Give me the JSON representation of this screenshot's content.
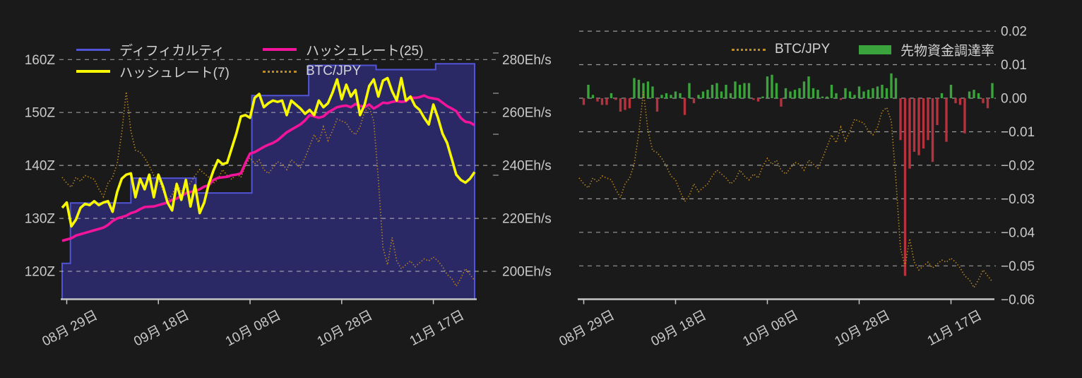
{
  "colors": {
    "background": "#1a1a1a",
    "text": "#c9c9c9",
    "gridline": "#b9b9b9",
    "baseline": "#c6c6c6",
    "difficulty_line": "#5254d6",
    "difficulty_fill": "#2b2866",
    "hashrate7": "#f8f800",
    "hashrate25": "#f2149a",
    "btc_jpy": "#c08a1e",
    "funding_positive": "#3ba33b",
    "funding_negative": "#b5323e"
  },
  "x_axis": {
    "tick_labels": [
      "08月 29日",
      "09月 18日",
      "10月 08日",
      "10月 28日",
      "11月 17日"
    ],
    "tick_day_indices": [
      1,
      21,
      41,
      61,
      81
    ],
    "day_range": [
      0,
      90
    ]
  },
  "chart_data": [
    {
      "type": "line",
      "title": "",
      "xlabel": "",
      "x_tick_labels": [
        "08月 29日",
        "09月 18日",
        "10月 08日",
        "10月 28日",
        "11月 17日"
      ],
      "x_tick_day_indices": [
        1,
        21,
        41,
        61,
        81
      ],
      "x_range_days": [
        0,
        90
      ],
      "grid": "dashed-horizontal",
      "legend_position": "upper-left-inside",
      "y_left": {
        "unit": "Z (difficulty)",
        "ticks": [
          "160Z",
          "150Z",
          "140Z",
          "130Z",
          "120Z"
        ],
        "values": [
          160,
          150,
          140,
          130,
          120
        ],
        "range": [
          118.9,
          165.3
        ]
      },
      "y_right": {
        "unit": "Eh/s (hashrate)",
        "ticks": [
          "280Eh/s",
          "260Eh/s",
          "240Eh/s",
          "220Eh/s",
          "200Eh/s"
        ],
        "values": [
          280,
          260,
          240,
          220,
          200
        ],
        "range": [
          197.8,
          290.6
        ]
      },
      "series": [
        {
          "name": "ディフィカルティ",
          "type": "step-area",
          "axis": "left",
          "unit": "Z",
          "color": "#5254d6",
          "fill": "#2b2866",
          "steps_day_value": [
            [
              0,
              121.5
            ],
            [
              1.8,
              132.9
            ],
            [
              15,
              137.6
            ],
            [
              29.2,
              134.8
            ],
            [
              41.4,
              153.2
            ],
            [
              53.8,
              158.9
            ],
            [
              68.5,
              158.1
            ],
            [
              81.5,
              159.2
            ]
          ]
        },
        {
          "name": "ハッシュレート(7)",
          "type": "line",
          "axis": "right",
          "unit": "Eh/s",
          "color": "#f8f800",
          "x_day_step": 1,
          "values": [
            224,
            226,
            217,
            219.5,
            224,
            225.5,
            225,
            226.5,
            225,
            226,
            226.5,
            222.5,
            230,
            235,
            236.5,
            237,
            228,
            235,
            231,
            236.5,
            228,
            236.5,
            232,
            226,
            223,
            233,
            227,
            234.5,
            224.5,
            232.5,
            222,
            226,
            233,
            238,
            242,
            240.5,
            241,
            246.5,
            252,
            258.5,
            259,
            258,
            265.5,
            267,
            262,
            263.5,
            264.5,
            264,
            264.5,
            259,
            264.5,
            263,
            261.5,
            259.5,
            261,
            259,
            264.5,
            262,
            263.5,
            267.5,
            272.5,
            265,
            270.5,
            266,
            268.5,
            259,
            263,
            270,
            272.5,
            266,
            272,
            273,
            268,
            264.5,
            273,
            264.5,
            266,
            262.5,
            261,
            258,
            255.5,
            263,
            258,
            252,
            248.5,
            242.5,
            236.5,
            234.5,
            233.5,
            235,
            237.5
          ]
        },
        {
          "name": "ハッシュレート(25)",
          "type": "line",
          "axis": "right",
          "unit": "Eh/s",
          "color": "#f2149a",
          "x_day_step": 1,
          "values": [
            211.5,
            212,
            212.5,
            213.5,
            214,
            214.5,
            215,
            215.5,
            216,
            216.5,
            217.5,
            219,
            220,
            220.5,
            221,
            222,
            222.5,
            223.5,
            224.3,
            224.4,
            224.5,
            225,
            225.5,
            226,
            227,
            227.5,
            228.5,
            229.5,
            230,
            230.3,
            231,
            232,
            232.5,
            234.5,
            235.3,
            235.5,
            235.7,
            236.3,
            236.5,
            237,
            241,
            244.5,
            245,
            246,
            247,
            247.8,
            248.5,
            249.5,
            251,
            252.5,
            253.5,
            254.5,
            255.5,
            257,
            259,
            258.5,
            258,
            258.5,
            260,
            261,
            262,
            262.4,
            262.6,
            262,
            263.2,
            262.5,
            262,
            263,
            261.5,
            262.5,
            263.7,
            263.5,
            264,
            264.3,
            264,
            264.2,
            265.6,
            265.5,
            265.8,
            266.4,
            265.6,
            265.3,
            265,
            263.7,
            262.4,
            261.5,
            260.5,
            257.9,
            256.5,
            256.2,
            255.2
          ]
        },
        {
          "name": "BTC/JPY",
          "type": "dotted-line",
          "axis": "unlabeled-overlay",
          "unit": "normalized 0-1",
          "color": "#c08a1e",
          "x_day_step": 1,
          "values": [
            0.56,
            0.53,
            0.51,
            0.56,
            0.54,
            0.57,
            0.56,
            0.55,
            0.5,
            0.46,
            0.53,
            0.56,
            0.63,
            0.79,
            1.0,
            0.8,
            0.7,
            0.69,
            0.66,
            0.62,
            0.57,
            0.55,
            0.49,
            0.44,
            0.47,
            0.53,
            0.49,
            0.51,
            0.53,
            0.57,
            0.6,
            0.58,
            0.56,
            0.53,
            0.55,
            0.6,
            0.57,
            0.55,
            0.58,
            0.56,
            0.62,
            0.66,
            0.63,
            0.65,
            0.6,
            0.58,
            0.61,
            0.64,
            0.63,
            0.6,
            0.65,
            0.63,
            0.61,
            0.66,
            0.72,
            0.78,
            0.74,
            0.82,
            0.75,
            0.8,
            0.86,
            0.85,
            0.84,
            0.8,
            0.78,
            0.82,
            0.9,
            0.92,
            0.85,
            0.55,
            0.2,
            0.11,
            0.25,
            0.13,
            0.09,
            0.11,
            0.13,
            0.1,
            0.12,
            0.14,
            0.13,
            0.15,
            0.13,
            0.1,
            0.06,
            0.04,
            0.0,
            0.04,
            0.09,
            0.06,
            0.03
          ]
        }
      ]
    },
    {
      "type": "bar",
      "title": "",
      "xlabel": "",
      "x_tick_labels": [
        "08月 29日",
        "09月 18日",
        "10月 08日",
        "10月 28日",
        "11月 17日"
      ],
      "x_tick_day_indices": [
        1,
        21,
        41,
        61,
        81
      ],
      "x_range_days": [
        0,
        90
      ],
      "grid": "dashed-horizontal",
      "legend_position": "upper-center-inside",
      "y_right": {
        "unit": "funding rate",
        "ticks": [
          "0.02",
          "0.01",
          "0.00",
          "−0.01",
          "−0.02",
          "−0.03",
          "−0.04",
          "−0.05",
          "−0.06"
        ],
        "values": [
          0.02,
          0.01,
          0.0,
          -0.01,
          -0.02,
          -0.03,
          -0.04,
          -0.05,
          -0.06
        ],
        "range": [
          -0.06,
          0.02
        ]
      },
      "series": [
        {
          "name": "BTC/JPY",
          "type": "dotted-line",
          "axis": "unlabeled-overlay",
          "unit": "normalized 0-1 (same series as left chart)",
          "color": "#c08a1e",
          "x_day_step": 1,
          "values": [
            0.56,
            0.53,
            0.51,
            0.56,
            0.54,
            0.57,
            0.56,
            0.55,
            0.5,
            0.46,
            0.53,
            0.56,
            0.63,
            0.79,
            1.0,
            0.8,
            0.7,
            0.69,
            0.66,
            0.62,
            0.57,
            0.55,
            0.49,
            0.44,
            0.47,
            0.53,
            0.49,
            0.51,
            0.53,
            0.57,
            0.6,
            0.58,
            0.56,
            0.53,
            0.55,
            0.6,
            0.57,
            0.55,
            0.58,
            0.56,
            0.62,
            0.66,
            0.63,
            0.65,
            0.6,
            0.58,
            0.61,
            0.64,
            0.63,
            0.6,
            0.65,
            0.63,
            0.61,
            0.66,
            0.72,
            0.78,
            0.74,
            0.82,
            0.75,
            0.8,
            0.86,
            0.85,
            0.84,
            0.8,
            0.78,
            0.82,
            0.9,
            0.92,
            0.85,
            0.55,
            0.2,
            0.11,
            0.25,
            0.13,
            0.09,
            0.11,
            0.13,
            0.1,
            0.12,
            0.14,
            0.13,
            0.15,
            0.13,
            0.1,
            0.06,
            0.04,
            0.0,
            0.04,
            0.09,
            0.06,
            0.03
          ]
        },
        {
          "name": "先物資金調達率",
          "type": "bar",
          "axis": "right",
          "unit": "rate",
          "color_positive": "#3ba33b",
          "color_negative": "#b5323e",
          "x_day_step": 1,
          "values": [
            0,
            -0.002,
            0.004,
            0.001,
            -0.001,
            -0.002,
            -0.002,
            0.0015,
            -0.0005,
            -0.004,
            -0.0035,
            -0.003,
            0.006,
            0.0055,
            0.0045,
            0.005,
            0.0035,
            -0.004,
            0.001,
            0.0015,
            0.001,
            0.002,
            0.0015,
            -0.005,
            0.0045,
            -0.0015,
            0.001,
            0.002,
            0.0025,
            0.004,
            0.0045,
            0.002,
            0.004,
            0.0015,
            0.005,
            0.004,
            0.0045,
            0.0045,
            -0.0005,
            -0.001,
            0.0005,
            0.0065,
            0.007,
            0.0045,
            -0.0025,
            0.003,
            0.002,
            0.0025,
            0.003,
            0.005,
            0.0065,
            0.003,
            0.0025,
            0.0005,
            0.0005,
            0.004,
            0.0015,
            -0.0005,
            0.003,
            0.002,
            0.001,
            0.0035,
            0.002,
            0.0025,
            0.003,
            0.0035,
            0.004,
            0.003,
            0.0074,
            0.006,
            -0.0125,
            -0.053,
            -0.021,
            -0.016,
            -0.017,
            -0.015,
            -0.0125,
            -0.019,
            -0.008,
            0.0015,
            -0.013,
            0.004,
            -0.0015,
            -0.002,
            -0.0105,
            0.002,
            0.0025,
            0.0015,
            -0.0015,
            -0.003,
            0.0045
          ]
        }
      ]
    }
  ]
}
